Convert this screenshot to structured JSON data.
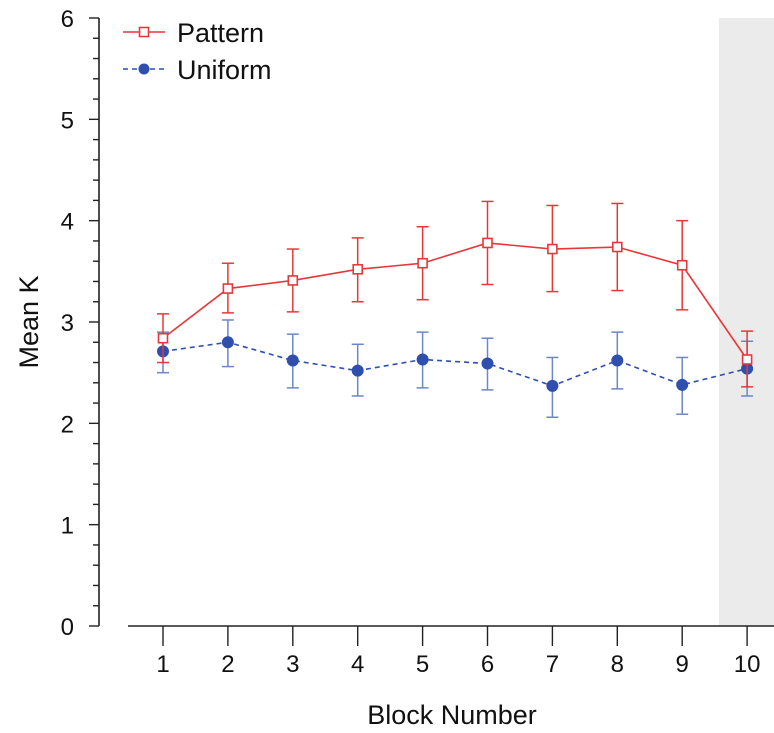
{
  "chart_data": {
    "type": "line",
    "title": "",
    "xlabel": "Block Number",
    "ylabel": "Mean K",
    "x": [
      1,
      2,
      3,
      4,
      5,
      6,
      7,
      8,
      9,
      10
    ],
    "xlim": [
      0.0,
      10.4
    ],
    "ylim": [
      0,
      6
    ],
    "yticks": [
      0,
      1,
      2,
      3,
      4,
      5,
      6
    ],
    "grid": false,
    "legend_position": "top-left",
    "shaded_region": {
      "x_from": 9.5,
      "x_to": 10.4,
      "color": "#ebebeb"
    },
    "series": [
      {
        "name": "Pattern",
        "color": "#e8373a",
        "line_style": "solid",
        "marker": "open-square",
        "values": [
          2.84,
          3.33,
          3.41,
          3.52,
          3.58,
          3.78,
          3.72,
          3.74,
          3.56,
          2.63
        ],
        "error_low": [
          2.6,
          3.09,
          3.1,
          3.2,
          3.22,
          3.37,
          3.3,
          3.31,
          3.12,
          2.36
        ],
        "error_high": [
          3.08,
          3.58,
          3.72,
          3.83,
          3.94,
          4.19,
          4.15,
          4.17,
          4.0,
          2.91
        ]
      },
      {
        "name": "Uniform",
        "color": "#2f4fae",
        "error_color": "#6b86c9",
        "line_style": "dashed",
        "marker": "filled-circle",
        "values": [
          2.71,
          2.8,
          2.62,
          2.52,
          2.63,
          2.59,
          2.37,
          2.62,
          2.38,
          2.54
        ],
        "error_low": [
          2.5,
          2.56,
          2.35,
          2.27,
          2.35,
          2.33,
          2.06,
          2.34,
          2.09,
          2.27
        ],
        "error_high": [
          2.9,
          3.02,
          2.88,
          2.78,
          2.9,
          2.84,
          2.65,
          2.9,
          2.65,
          2.81
        ]
      }
    ]
  }
}
